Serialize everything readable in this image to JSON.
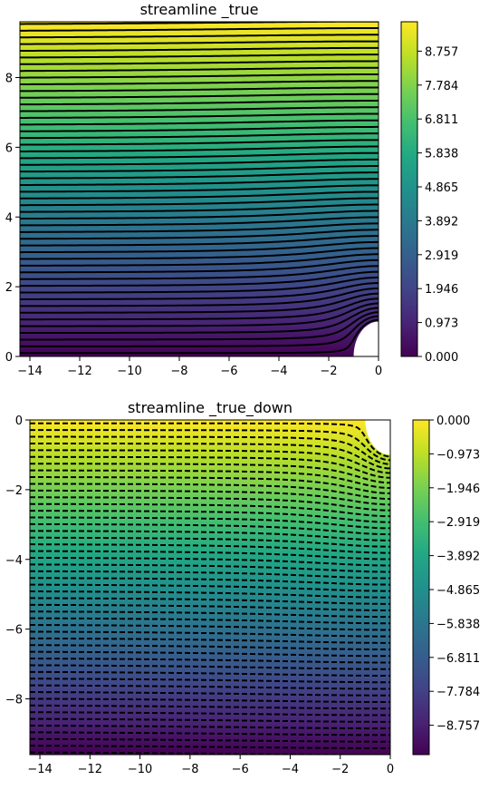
{
  "chart_data": [
    {
      "type": "contour",
      "title": "streamline _true",
      "line_style": "solid",
      "xlim": [
        -14.4,
        0
      ],
      "ylim": [
        0,
        9.6
      ],
      "x_ticks": [
        -14,
        -12,
        -10,
        -8,
        -6,
        -4,
        -2,
        0
      ],
      "x_tick_labels": [
        "−14",
        "−12",
        "−10",
        "−8",
        "−6",
        "−4",
        "−2",
        "0"
      ],
      "y_ticks": [
        0,
        2,
        4,
        6,
        8
      ],
      "y_tick_labels": [
        "0",
        "2",
        "4",
        "6",
        "8"
      ],
      "colormap": "viridis",
      "colorbar_range": [
        0,
        9.6
      ],
      "colorbar_ticks": [
        0.0,
        0.973,
        1.946,
        2.919,
        3.892,
        4.865,
        5.838,
        6.811,
        7.784,
        8.757
      ],
      "colorbar_tick_labels": [
        "0.000",
        "0.973",
        "1.946",
        "2.919",
        "3.892",
        "4.865",
        "5.838",
        "6.811",
        "7.784",
        "8.757"
      ],
      "obstacle": {
        "shape": "quarter-circle",
        "center": [
          0,
          0
        ],
        "radius": 1
      },
      "field": "stream function of uniform flow past a cylinder of radius 1, far-field value equal to y",
      "contour_count": 50
    },
    {
      "type": "contour",
      "title": "streamline _true_down",
      "line_style": "dashed",
      "xlim": [
        -14.4,
        0
      ],
      "ylim": [
        -9.6,
        0
      ],
      "x_ticks": [
        -14,
        -12,
        -10,
        -8,
        -6,
        -4,
        -2,
        0
      ],
      "x_tick_labels": [
        "−14",
        "−12",
        "−10",
        "−8",
        "−6",
        "−4",
        "−2",
        "0"
      ],
      "y_ticks": [
        -8,
        -6,
        -4,
        -2,
        0
      ],
      "y_tick_labels": [
        "−8",
        "−6",
        "−4",
        "−2",
        "0"
      ],
      "colormap": "viridis",
      "colorbar_range": [
        -9.6,
        0
      ],
      "colorbar_ticks": [
        0.0,
        -0.973,
        -1.946,
        -2.919,
        -3.892,
        -4.865,
        -5.838,
        -6.811,
        -7.784,
        -8.757
      ],
      "colorbar_tick_labels": [
        "0.000",
        "−0.973",
        "−1.946",
        "−2.919",
        "−3.892",
        "−4.865",
        "−5.838",
        "−6.811",
        "−7.784",
        "−8.757"
      ],
      "obstacle": {
        "shape": "quarter-circle",
        "center": [
          0,
          0
        ],
        "radius": 1
      },
      "field": "stream function of uniform flow past a cylinder of radius 1, far-field value equal to y",
      "contour_count": 50
    }
  ]
}
